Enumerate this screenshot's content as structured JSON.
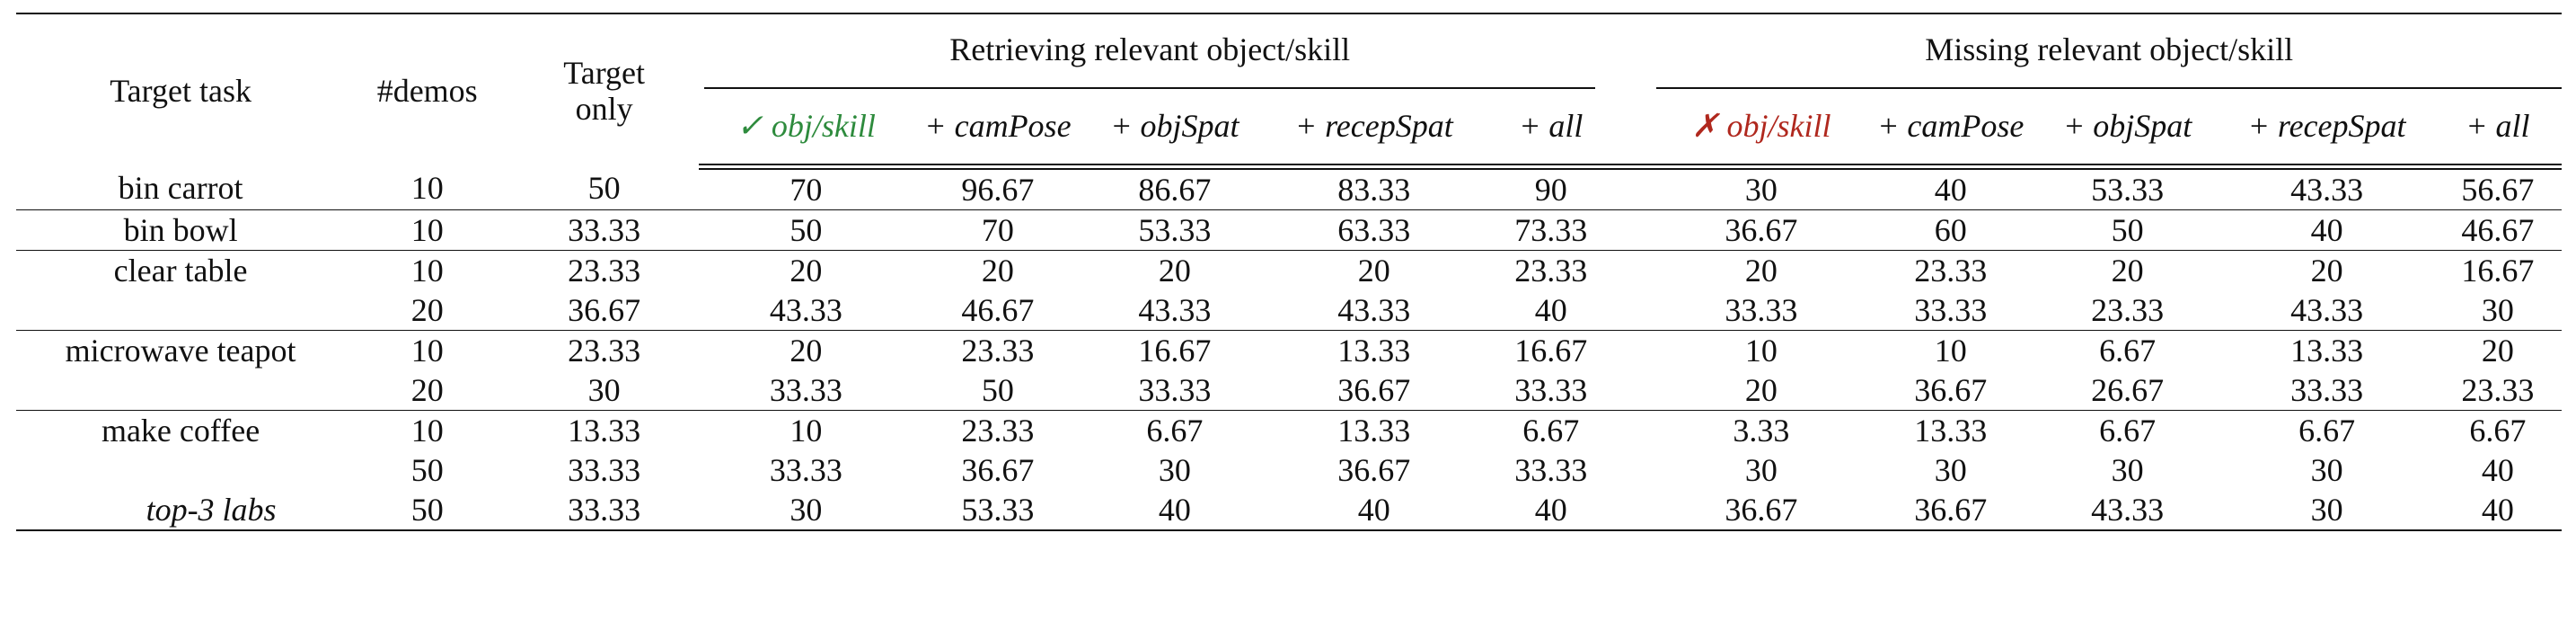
{
  "headers": {
    "target_task": "Target task",
    "demos": "#demos",
    "target_only_line1": "Target",
    "target_only_line2": "only",
    "group_retrieving": "Retrieving relevant object/skill",
    "group_missing": "Missing relevant object/skill",
    "retrieving_sub": {
      "c1_mark": "✓",
      "c1_text": "obj/skill",
      "c2": "+ camPose",
      "c3": "+ objSpat",
      "c4": "+ recepSpat",
      "c5": "+ all"
    },
    "missing_sub": {
      "c1_mark": "✗",
      "c1_text": "obj/skill",
      "c2": "+ camPose",
      "c3": "+ objSpat",
      "c4": "+ recepSpat",
      "c5": "+ all"
    }
  },
  "rows": [
    {
      "task": "bin carrot",
      "demos": "10",
      "target": "50",
      "ret": [
        "70",
        "96.67",
        "86.67",
        "83.33",
        "90"
      ],
      "mis": [
        "30",
        "40",
        "53.33",
        "43.33",
        "56.67"
      ],
      "bold_ret": [
        1
      ],
      "bold_mis": [
        4
      ]
    },
    {
      "task": "bin bowl",
      "demos": "10",
      "target": "33.33",
      "ret": [
        "50",
        "70",
        "53.33",
        "63.33",
        "73.33"
      ],
      "mis": [
        "36.67",
        "60",
        "50",
        "40",
        "46.67"
      ],
      "bold_ret": [
        4
      ],
      "bold_mis": [
        1
      ]
    },
    {
      "task": "clear table",
      "demos": "10",
      "target": "23.33",
      "ret": [
        "20",
        "20",
        "20",
        "20",
        "23.33"
      ],
      "mis": [
        "20",
        "23.33",
        "20",
        "20",
        "16.67"
      ],
      "bold_ret": [],
      "bold_mis": []
    },
    {
      "task": "",
      "demos": "20",
      "target": "36.67",
      "ret": [
        "43.33",
        "46.67",
        "43.33",
        "43.33",
        "40"
      ],
      "mis": [
        "33.33",
        "33.33",
        "23.33",
        "43.33",
        "30"
      ],
      "bold_ret": [
        1
      ],
      "bold_mis": [
        3
      ]
    },
    {
      "task": "microwave teapot",
      "demos": "10",
      "target": "23.33",
      "ret": [
        "20",
        "23.33",
        "16.67",
        "13.33",
        "16.67"
      ],
      "mis": [
        "10",
        "10",
        "6.67",
        "13.33",
        "20"
      ],
      "bold_ret": [],
      "bold_mis": [
        4
      ]
    },
    {
      "task": "",
      "demos": "20",
      "target": "30",
      "ret": [
        "33.33",
        "50",
        "33.33",
        "36.67",
        "33.33"
      ],
      "mis": [
        "20",
        "36.67",
        "26.67",
        "33.33",
        "23.33"
      ],
      "bold_ret": [
        1
      ],
      "bold_mis": [
        1
      ]
    },
    {
      "task": "make coffee",
      "demos": "10",
      "target": "13.33",
      "ret": [
        "10",
        "23.33",
        "6.67",
        "13.33",
        "6.67"
      ],
      "mis": [
        "3.33",
        "13.33",
        "6.67",
        "6.67",
        "6.67"
      ],
      "bold_ret": [
        1
      ],
      "bold_mis": []
    },
    {
      "task": "",
      "demos": "50",
      "target": "33.33",
      "ret": [
        "33.33",
        "36.67",
        "30",
        "36.67",
        "33.33"
      ],
      "mis": [
        "30",
        "30",
        "30",
        "30",
        "40"
      ],
      "bold_ret": [],
      "bold_mis": [
        4
      ]
    },
    {
      "task": "top-3 labs",
      "demos": "50",
      "target": "33.33",
      "ret": [
        "30",
        "53.33",
        "40",
        "40",
        "40"
      ],
      "mis": [
        "36.67",
        "36.67",
        "43.33",
        "30",
        "40"
      ],
      "bold_ret": [
        1
      ],
      "bold_mis": [
        2
      ]
    }
  ]
}
